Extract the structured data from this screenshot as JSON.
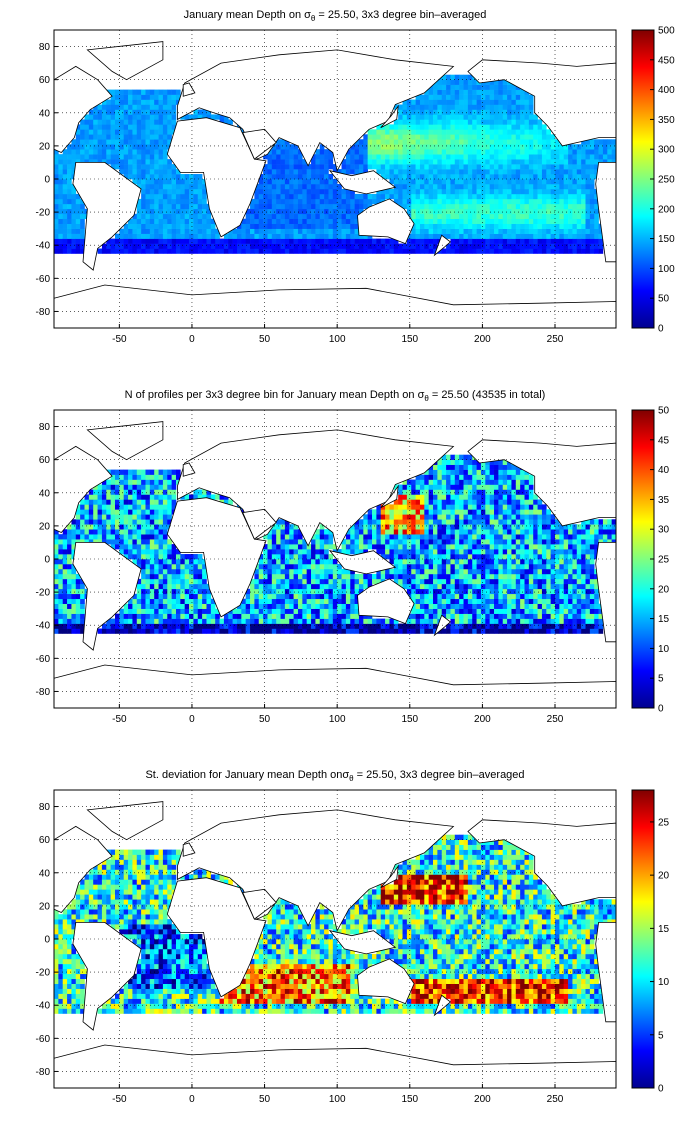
{
  "chart_data": [
    {
      "type": "heatmap",
      "title": "January mean Depth on σθ = 25.50, 3x3 degree bin–averaged",
      "title_parts": {
        "pre": "January mean Depth on σ",
        "sub": "θ",
        "post": " = 25.50, 3x3 degree bin–averaged"
      },
      "xlim": [
        -95,
        292
      ],
      "ylim": [
        -90,
        90
      ],
      "xticks": [
        "-50",
        "0",
        "50",
        "100",
        "150",
        "200",
        "250"
      ],
      "yticks": [
        "80",
        "60",
        "40",
        "20",
        "0",
        "-20",
        "-40",
        "-60",
        "-80"
      ],
      "grid": true,
      "colorbar": {
        "min": 0,
        "max": 500,
        "ticks": [
          "500",
          "450",
          "400",
          "350",
          "300",
          "250",
          "200",
          "150",
          "100",
          "50",
          "0"
        ]
      }
    },
    {
      "type": "heatmap",
      "title": "N of profiles per 3x3 degree bin for January mean Depth on σθ = 25.50 (43535 in total)",
      "title_parts": {
        "pre": "N of profiles per 3x3 degree bin for January mean Depth on σ",
        "sub": "θ",
        "post": " = 25.50 (43535 in total)"
      },
      "xlim": [
        -95,
        292
      ],
      "ylim": [
        -90,
        90
      ],
      "xticks": [
        "-50",
        "0",
        "50",
        "100",
        "150",
        "200",
        "250"
      ],
      "yticks": [
        "80",
        "60",
        "40",
        "20",
        "0",
        "-20",
        "-40",
        "-60",
        "-80"
      ],
      "grid": true,
      "colorbar": {
        "min": 0,
        "max": 50,
        "ticks": [
          "50",
          "45",
          "40",
          "35",
          "30",
          "25",
          "20",
          "15",
          "10",
          "5",
          "0"
        ]
      }
    },
    {
      "type": "heatmap",
      "title": "St. deviation for January mean Depth onσθ = 25.50, 3x3 degree bin–averaged",
      "title_parts": {
        "pre": "St. deviation for January mean Depth onσ",
        "sub": "θ",
        "post": " = 25.50, 3x3 degree bin–averaged"
      },
      "xlim": [
        -95,
        292
      ],
      "ylim": [
        -90,
        90
      ],
      "xticks": [
        "-50",
        "0",
        "50",
        "100",
        "150",
        "200",
        "250"
      ],
      "yticks": [
        "80",
        "60",
        "40",
        "20",
        "0",
        "-20",
        "-40",
        "-60",
        "-80"
      ],
      "grid": true,
      "colorbar": {
        "min": 0,
        "max": 28,
        "ticks": [
          "25",
          "20",
          "15",
          "10",
          "5",
          "0"
        ]
      }
    }
  ]
}
